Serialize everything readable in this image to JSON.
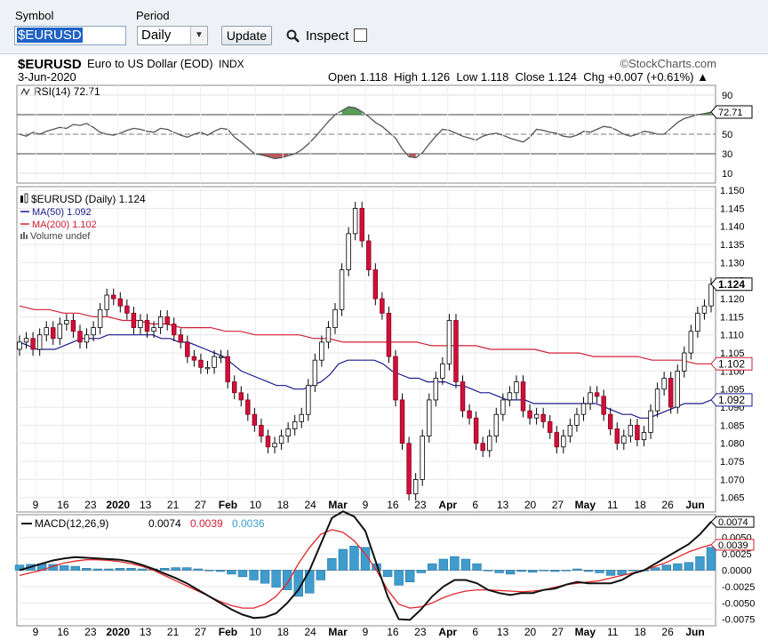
{
  "toolbar": {
    "symbol_label": "Symbol",
    "symbol_value": "$EURUSD",
    "period_label": "Period",
    "period_value": "Daily",
    "update_label": "Update",
    "inspect_label": "Inspect"
  },
  "header": {
    "symbol": "$EURUSD",
    "name": "Euro to US Dollar (EOD)",
    "exchange": "INDX",
    "brand": "©StockCharts.com",
    "date": "3-Jun-2020",
    "ohlc": "Open 1.118  High 1.126  Low 1.118  Close 1.124  Chg +0.007 (+0.61%) ▲"
  },
  "chart_data": [
    {
      "type": "line",
      "panel": "RSI",
      "title": "RSI(14) 72.71",
      "ylim": [
        0,
        100
      ],
      "y_ticks": [
        90,
        70,
        50,
        30,
        10
      ],
      "last_value_label": "72.71",
      "values": [
        50,
        48,
        52,
        50,
        53,
        55,
        57,
        56,
        60,
        59,
        61,
        57,
        52,
        50,
        49,
        51,
        54,
        56,
        55,
        53,
        52,
        56,
        55,
        52,
        49,
        47,
        50,
        52,
        49,
        53,
        56,
        55,
        47,
        42,
        36,
        30,
        29,
        27,
        25,
        26,
        28,
        30,
        34,
        40,
        47,
        55,
        63,
        70,
        74,
        78,
        77,
        73,
        68,
        62,
        58,
        52,
        46,
        35,
        27,
        26,
        31,
        40,
        48,
        55,
        54,
        51,
        48,
        46,
        44,
        48,
        50,
        51,
        49,
        46,
        44,
        42,
        47,
        55,
        54,
        52,
        51,
        48,
        47,
        49,
        53,
        52,
        55,
        58,
        57,
        54,
        50,
        48,
        50,
        53,
        52,
        50,
        50,
        56,
        62,
        66,
        68,
        70,
        71,
        72.71
      ]
    },
    {
      "type": "candlestick",
      "panel": "price",
      "title": "$EURUSD (Daily) 1.124",
      "series": [
        {
          "name": "MA(50) 1.092",
          "color": "#1a1a8c"
        },
        {
          "name": "MA(200) 1.102",
          "color": "#d02035"
        }
      ],
      "legend_extra": "Volume undef",
      "ylim": [
        1.061,
        1.151
      ],
      "y_ticks": [
        1.15,
        1.145,
        1.14,
        1.135,
        1.13,
        1.125,
        1.12,
        1.115,
        1.11,
        1.105,
        1.1,
        1.095,
        1.09,
        1.085,
        1.08,
        1.075,
        1.07,
        1.065
      ],
      "y_tick_labels": [
        "1.150",
        "1.145",
        "1.140",
        "1.135",
        "1.130",
        "1.125",
        "1.120",
        "1.115",
        "1.110",
        "1.105",
        "1.100",
        "1.095",
        "1.090",
        "1.085",
        "1.080",
        "1.075",
        "1.070",
        "1.065"
      ],
      "price_labels": [
        "1.124",
        "1.102",
        "1.092"
      ],
      "x_tick_labels": [
        "9",
        "16",
        "23",
        "2020",
        "13",
        "21",
        "27",
        "Feb",
        "10",
        "18",
        "24",
        "Mar",
        "9",
        "16",
        "23",
        "Apr",
        "6",
        "13",
        "20",
        "27",
        "May",
        "11",
        "18",
        "26",
        "Jun"
      ],
      "close": [
        1.108,
        1.109,
        1.106,
        1.11,
        1.112,
        1.109,
        1.113,
        1.114,
        1.111,
        1.108,
        1.11,
        1.112,
        1.117,
        1.121,
        1.12,
        1.118,
        1.116,
        1.112,
        1.114,
        1.111,
        1.112,
        1.115,
        1.113,
        1.11,
        1.108,
        1.104,
        1.103,
        1.101,
        1.101,
        1.104,
        1.104,
        1.097,
        1.094,
        1.092,
        1.088,
        1.085,
        1.082,
        1.079,
        1.08,
        1.082,
        1.084,
        1.086,
        1.088,
        1.096,
        1.103,
        1.108,
        1.112,
        1.117,
        1.128,
        1.138,
        1.145,
        1.136,
        1.128,
        1.12,
        1.116,
        1.104,
        1.092,
        1.08,
        1.066,
        1.07,
        1.082,
        1.092,
        1.098,
        1.102,
        1.114,
        1.097,
        1.089,
        1.087,
        1.08,
        1.078,
        1.082,
        1.088,
        1.092,
        1.094,
        1.097,
        1.089,
        1.087,
        1.088,
        1.086,
        1.083,
        1.079,
        1.082,
        1.085,
        1.088,
        1.091,
        1.094,
        1.093,
        1.088,
        1.084,
        1.08,
        1.082,
        1.085,
        1.081,
        1.083,
        1.089,
        1.095,
        1.098,
        1.09,
        1.1,
        1.105,
        1.111,
        1.116,
        1.118,
        1.124
      ],
      "ma50": [
        1.108,
        1.107,
        1.106,
        1.106,
        1.106,
        1.107,
        1.108,
        1.109,
        1.109,
        1.109,
        1.11,
        1.11,
        1.11,
        1.11,
        1.11,
        1.11,
        1.109,
        1.109,
        1.108,
        1.108,
        1.107,
        1.106,
        1.105,
        1.104,
        1.102,
        1.1,
        1.099,
        1.098,
        1.097,
        1.096,
        1.096,
        1.095,
        1.095,
        1.096,
        1.097,
        1.099,
        1.102,
        1.103,
        1.103,
        1.103,
        1.103,
        1.102,
        1.1,
        1.099,
        1.098,
        1.098,
        1.097,
        1.097,
        1.097,
        1.096,
        1.096,
        1.095,
        1.094,
        1.094,
        1.093,
        1.092,
        1.092,
        1.092,
        1.091,
        1.091,
        1.091,
        1.091,
        1.091,
        1.091,
        1.091,
        1.091,
        1.09,
        1.089,
        1.088,
        1.088,
        1.087,
        1.087,
        1.088,
        1.089,
        1.09,
        1.091,
        1.091,
        1.091,
        1.092
      ],
      "ma200": [
        1.118,
        1.117,
        1.117,
        1.116,
        1.116,
        1.115,
        1.115,
        1.114,
        1.114,
        1.113,
        1.113,
        1.112,
        1.112,
        1.112,
        1.111,
        1.111,
        1.11,
        1.11,
        1.11,
        1.11,
        1.109,
        1.109,
        1.108,
        1.108,
        1.108,
        1.108,
        1.108,
        1.108,
        1.107,
        1.107,
        1.107,
        1.107,
        1.106,
        1.106,
        1.106,
        1.106,
        1.105,
        1.105,
        1.105,
        1.104,
        1.104,
        1.104,
        1.104,
        1.103,
        1.103,
        1.103,
        1.102,
        1.102
      ]
    },
    {
      "type": "line",
      "panel": "MACD",
      "title": "MACD(12,26,9)",
      "series": [
        {
          "name": "0.0074",
          "color": "#000000"
        },
        {
          "name": "0.0039",
          "color": "#d02035"
        },
        {
          "name": "0.0036",
          "color": "#3f9ccd"
        }
      ],
      "ylim": [
        -0.0085,
        0.0085
      ],
      "y_ticks": [
        0.005,
        0.0025,
        0.0,
        -0.0025,
        -0.005,
        -0.0075
      ],
      "y_tick_labels": [
        "0.0050",
        "0.0025",
        "0.0000",
        "-0.0025",
        "-0.0050",
        "-0.0075"
      ],
      "value_labels": [
        "0.0074",
        "0.0039"
      ],
      "macd": [
        0.0,
        0.0005,
        0.001,
        0.0015,
        0.0018,
        0.002,
        0.0019,
        0.0018,
        0.0017,
        0.0016,
        0.0013,
        0.0008,
        0.0002,
        -0.0005,
        -0.0012,
        -0.002,
        -0.003,
        -0.004,
        -0.005,
        -0.006,
        -0.0068,
        -0.0073,
        -0.0072,
        -0.0066,
        -0.005,
        -0.003,
        0.0,
        0.004,
        0.008,
        0.009,
        0.0082,
        0.006,
        0.001,
        -0.004,
        -0.0075,
        -0.0076,
        -0.006,
        -0.004,
        -0.0025,
        -0.0015,
        -0.0015,
        -0.002,
        -0.003,
        -0.0035,
        -0.0038,
        -0.0035,
        -0.0035,
        -0.003,
        -0.0028,
        -0.0022,
        -0.0018,
        -0.002,
        -0.002,
        -0.002,
        -0.0015,
        -0.0005,
        0.0,
        0.001,
        0.002,
        0.003,
        0.004,
        0.0055,
        0.0074
      ],
      "signal": [
        -0.0008,
        -0.0004,
        0.0,
        0.0006,
        0.0011,
        0.0014,
        0.0016,
        0.0016,
        0.0015,
        0.0013,
        0.001,
        0.0006,
        0.0,
        -0.0008,
        -0.0016,
        -0.0024,
        -0.0032,
        -0.004,
        -0.0048,
        -0.0054,
        -0.0058,
        -0.0058,
        -0.0052,
        -0.004,
        -0.002,
        0.001,
        0.0035,
        0.0055,
        0.0062,
        0.0058,
        0.0045,
        0.0025,
        0.0,
        -0.003,
        -0.0052,
        -0.0058,
        -0.0056,
        -0.005,
        -0.0042,
        -0.0036,
        -0.0032,
        -0.003,
        -0.003,
        -0.0031,
        -0.0032,
        -0.0033,
        -0.0032,
        -0.003,
        -0.0026,
        -0.0022,
        -0.002,
        -0.0018,
        -0.0016,
        -0.0012,
        -0.0008,
        -0.0004,
        0.0,
        0.0006,
        0.0012,
        0.002,
        0.0028,
        0.0034,
        0.0039
      ]
    }
  ]
}
